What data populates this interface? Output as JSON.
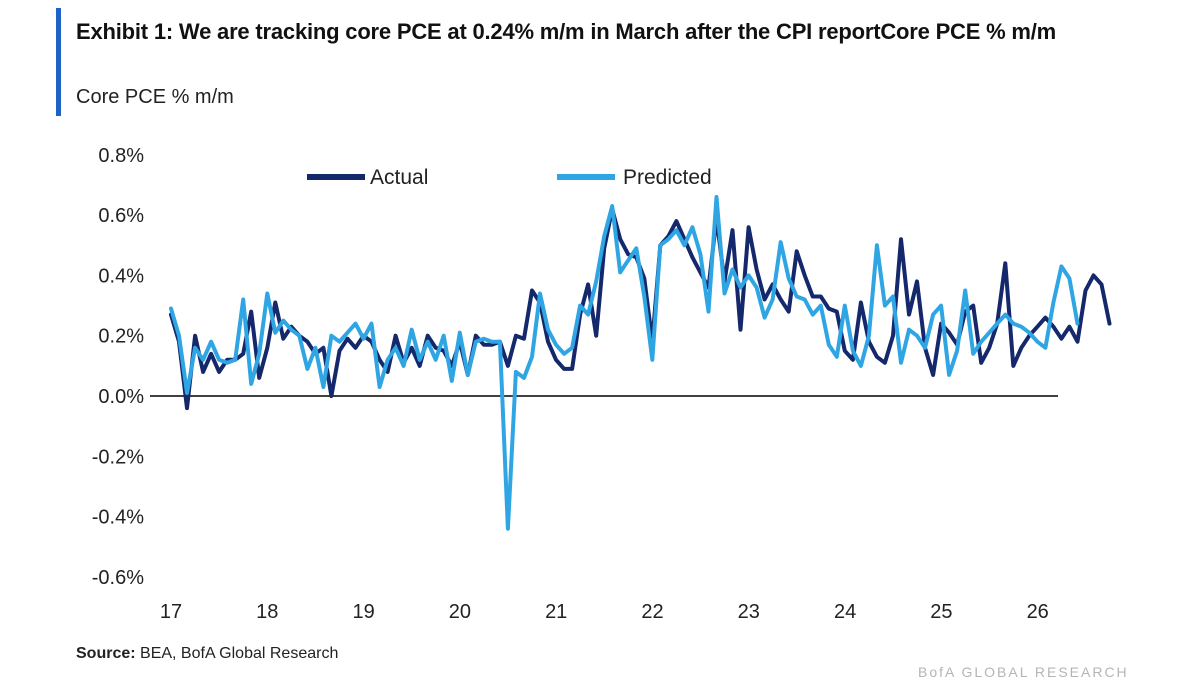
{
  "header": {
    "title": "Exhibit 1:  We are tracking core PCE at 0.24% m/m in March after the CPI reportCore PCE % m/m",
    "subtitle": "Core PCE % m/m"
  },
  "footer": {
    "source_label": "Source:",
    "source_text": " BEA, BofA Global Research",
    "watermark": "BofA GLOBAL RESEARCH"
  },
  "colors": {
    "accent": "#1d63c7",
    "actual": "#14286b",
    "predicted": "#2fa6e3",
    "zero_line": "#000000",
    "text": "#222222"
  },
  "chart_data": {
    "type": "line",
    "title": "Core PCE % m/m",
    "xlabel": "",
    "ylabel": "",
    "x_ticks": [
      "17",
      "18",
      "19",
      "20",
      "21",
      "22",
      "23",
      "24",
      "25",
      "26"
    ],
    "x_range": [
      17.0,
      27.0
    ],
    "ylim": [
      -0.6,
      0.8
    ],
    "y_ticks": [
      "0.8%",
      "0.6%",
      "0.4%",
      "0.2%",
      "0.0%",
      "-0.2%",
      "-0.4%",
      "-0.6%"
    ],
    "y_tick_values": [
      0.8,
      0.6,
      0.4,
      0.2,
      0.0,
      -0.2,
      -0.4,
      -0.6
    ],
    "legend": [
      "Actual",
      "Predicted"
    ],
    "legend_position": "top-center",
    "x_start": 17.0,
    "x_step": 0.0833,
    "series": [
      {
        "name": "Actual",
        "values": [
          0.27,
          0.18,
          -0.04,
          0.2,
          0.08,
          0.14,
          0.08,
          0.12,
          0.12,
          0.14,
          0.28,
          0.06,
          0.16,
          0.31,
          0.19,
          0.23,
          0.2,
          0.18,
          0.14,
          0.16,
          0.0,
          0.15,
          0.19,
          0.16,
          0.2,
          0.18,
          0.12,
          0.08,
          0.2,
          0.11,
          0.16,
          0.1,
          0.2,
          0.16,
          0.15,
          0.1,
          0.18,
          0.07,
          0.2,
          0.17,
          0.17,
          0.18,
          0.1,
          0.2,
          0.19,
          0.35,
          0.31,
          0.18,
          0.12,
          0.09,
          0.09,
          0.27,
          0.37,
          0.2,
          0.49,
          0.62,
          0.52,
          0.47,
          0.46,
          0.39,
          0.18,
          0.5,
          0.53,
          0.58,
          0.52,
          0.46,
          0.41,
          0.36,
          0.59,
          0.38,
          0.55,
          0.22,
          0.56,
          0.42,
          0.32,
          0.37,
          0.32,
          0.28,
          0.48,
          0.4,
          0.33,
          0.33,
          0.29,
          0.28,
          0.15,
          0.12,
          0.31,
          0.18,
          0.13,
          0.11,
          0.2,
          0.52,
          0.27,
          0.38,
          0.16,
          0.07,
          0.24,
          0.21,
          0.17,
          0.28,
          0.3,
          0.11,
          0.16,
          0.24,
          0.44,
          0.1,
          0.16,
          0.2,
          0.23,
          0.26,
          0.23,
          0.19,
          0.23,
          0.18,
          0.35,
          0.4,
          0.37,
          0.24
        ]
      },
      {
        "name": "Predicted",
        "values": [
          0.29,
          0.2,
          0.01,
          0.16,
          0.12,
          0.18,
          0.12,
          0.11,
          0.12,
          0.32,
          0.04,
          0.14,
          0.34,
          0.21,
          0.25,
          0.22,
          0.2,
          0.09,
          0.16,
          0.03,
          0.2,
          0.18,
          0.21,
          0.24,
          0.19,
          0.24,
          0.03,
          0.12,
          0.16,
          0.1,
          0.22,
          0.12,
          0.18,
          0.12,
          0.2,
          0.05,
          0.21,
          0.07,
          0.18,
          0.19,
          0.18,
          0.18,
          -0.44,
          0.08,
          0.06,
          0.13,
          0.34,
          0.22,
          0.17,
          0.14,
          0.16,
          0.3,
          0.27,
          0.38,
          0.53,
          0.63,
          0.41,
          0.45,
          0.49,
          0.33,
          0.12,
          0.5,
          0.52,
          0.55,
          0.5,
          0.56,
          0.47,
          0.28,
          0.66,
          0.34,
          0.42,
          0.36,
          0.4,
          0.36,
          0.26,
          0.32,
          0.51,
          0.39,
          0.33,
          0.32,
          0.27,
          0.3,
          0.17,
          0.13,
          0.3,
          0.15,
          0.1,
          0.2,
          0.5,
          0.3,
          0.33,
          0.11,
          0.22,
          0.2,
          0.16,
          0.27,
          0.3,
          0.07,
          0.15,
          0.35,
          0.14,
          0.18,
          0.21,
          0.24,
          0.27,
          0.24,
          0.23,
          0.21,
          0.18,
          0.16,
          0.31,
          0.43,
          0.39,
          0.24
        ]
      }
    ]
  }
}
